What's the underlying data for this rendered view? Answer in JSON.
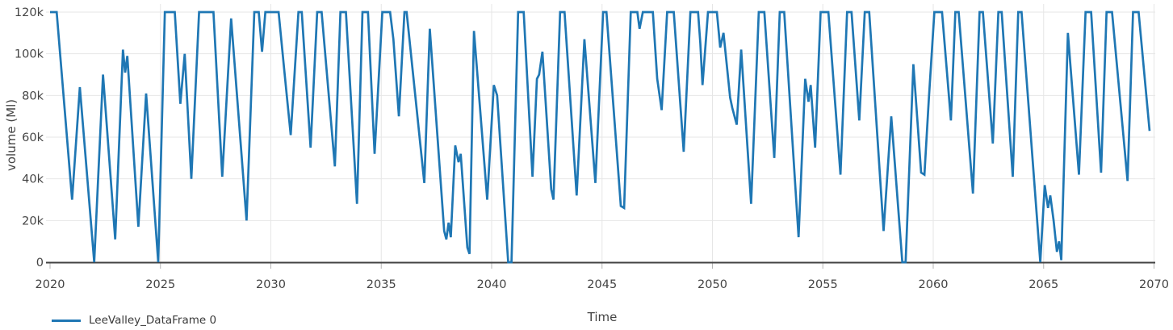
{
  "chart_data": {
    "type": "line",
    "title": "",
    "xlabel": "Time",
    "ylabel": "volume (Ml)",
    "xlim": [
      2020,
      2070
    ],
    "ylim": [
      0,
      120000
    ],
    "grid": true,
    "legend_position": "bottom-left-below-axis",
    "x_ticks": [
      2020,
      2025,
      2030,
      2035,
      2040,
      2045,
      2050,
      2055,
      2060,
      2065,
      2070
    ],
    "x_tick_labels": [
      "2020",
      "2025",
      "2030",
      "2035",
      "2040",
      "2045",
      "2050",
      "2055",
      "2060",
      "2065",
      "2070"
    ],
    "y_ticks": [
      0,
      20000,
      40000,
      60000,
      80000,
      100000,
      120000
    ],
    "y_tick_labels": [
      "0",
      "20k",
      "40k",
      "60k",
      "80k",
      "100k",
      "120k"
    ],
    "series": [
      {
        "name": "LeeValley_DataFrame 0",
        "color": "#1f77b4",
        "x": [
          2020.0,
          2020.3,
          2021.0,
          2021.35,
          2022.0,
          2022.4,
          2022.95,
          2023.3,
          2023.4,
          2023.5,
          2024.0,
          2024.35,
          2024.9,
          2025.2,
          2025.65,
          2025.9,
          2026.1,
          2026.4,
          2026.75,
          2027.4,
          2027.8,
          2028.2,
          2028.9,
          2029.25,
          2029.45,
          2029.6,
          2029.75,
          2030.35,
          2030.6,
          2030.9,
          2031.25,
          2031.4,
          2031.8,
          2032.1,
          2032.3,
          2032.9,
          2033.15,
          2033.4,
          2033.9,
          2034.15,
          2034.4,
          2034.7,
          2035.05,
          2035.4,
          2035.55,
          2035.8,
          2036.05,
          2036.15,
          2036.95,
          2037.2,
          2037.85,
          2037.95,
          2038.05,
          2038.15,
          2038.35,
          2038.5,
          2038.6,
          2038.9,
          2039.0,
          2039.2,
          2039.8,
          2040.1,
          2040.25,
          2040.75,
          2040.9,
          2041.2,
          2041.45,
          2041.85,
          2042.05,
          2042.15,
          2042.3,
          2042.7,
          2042.8,
          2043.1,
          2043.3,
          2043.85,
          2044.2,
          2044.7,
          2045.05,
          2045.2,
          2045.85,
          2046.0,
          2046.3,
          2046.6,
          2046.7,
          2046.85,
          2047.3,
          2047.5,
          2047.7,
          2047.95,
          2048.25,
          2048.7,
          2049.0,
          2049.35,
          2049.45,
          2049.55,
          2049.8,
          2050.2,
          2050.35,
          2050.5,
          2050.8,
          2050.9,
          2051.1,
          2051.3,
          2051.75,
          2052.1,
          2052.35,
          2052.8,
          2053.05,
          2053.25,
          2053.9,
          2054.2,
          2054.35,
          2054.45,
          2054.65,
          2054.9,
          2055.25,
          2055.8,
          2056.1,
          2056.3,
          2056.65,
          2056.9,
          2057.1,
          2057.75,
          2058.1,
          2058.6,
          2058.75,
          2059.1,
          2059.45,
          2059.6,
          2059.8,
          2060.05,
          2060.4,
          2060.8,
          2061.0,
          2061.15,
          2061.8,
          2062.1,
          2062.25,
          2062.7,
          2062.95,
          2063.1,
          2063.6,
          2063.85,
          2064.0,
          2064.85,
          2065.05,
          2065.2,
          2065.3,
          2065.45,
          2065.6,
          2065.7,
          2065.8,
          2066.1,
          2066.6,
          2066.9,
          2067.15,
          2067.6,
          2067.85,
          2068.1,
          2068.8,
          2069.05,
          2069.3,
          2069.8
        ],
        "y": [
          120000,
          120000,
          30000,
          84000,
          0,
          90000,
          11000,
          102000,
          91000,
          99000,
          17000,
          81000,
          0,
          120000,
          120000,
          76000,
          100000,
          40000,
          120000,
          120000,
          41000,
          117000,
          20000,
          120000,
          120000,
          101000,
          120000,
          120000,
          93000,
          61000,
          120000,
          120000,
          55000,
          120000,
          120000,
          46000,
          120000,
          120000,
          28000,
          120000,
          120000,
          52000,
          120000,
          120000,
          107000,
          70000,
          120000,
          120000,
          38000,
          112000,
          15000,
          11000,
          19000,
          12000,
          56000,
          48000,
          52000,
          7000,
          4000,
          111000,
          30000,
          85000,
          80000,
          0,
          0,
          120000,
          120000,
          41000,
          88000,
          90000,
          101000,
          35000,
          30000,
          120000,
          120000,
          32000,
          107000,
          38000,
          120000,
          120000,
          27000,
          26000,
          120000,
          120000,
          112000,
          120000,
          120000,
          88000,
          73000,
          120000,
          120000,
          53000,
          120000,
          120000,
          105000,
          85000,
          120000,
          120000,
          103000,
          110000,
          79000,
          74000,
          66000,
          102000,
          28000,
          120000,
          120000,
          50000,
          120000,
          120000,
          12000,
          88000,
          77000,
          85000,
          55000,
          120000,
          120000,
          42000,
          120000,
          120000,
          68000,
          120000,
          120000,
          15000,
          70000,
          0,
          0,
          95000,
          43000,
          42000,
          78000,
          120000,
          120000,
          68000,
          120000,
          120000,
          33000,
          120000,
          120000,
          57000,
          120000,
          120000,
          41000,
          120000,
          120000,
          0,
          37000,
          26000,
          32000,
          20000,
          5000,
          10000,
          1000,
          110000,
          42000,
          120000,
          120000,
          43000,
          120000,
          120000,
          39000,
          120000,
          120000,
          63000
        ]
      }
    ],
    "colors": {
      "line": "#1f77b4",
      "axis_line": "#424242",
      "grid": "#e6e6e6",
      "tick_mark": "#b5b5b5",
      "tick_text": "#444444",
      "legend_text": "#3a3a3a",
      "background": "#ffffff"
    }
  }
}
